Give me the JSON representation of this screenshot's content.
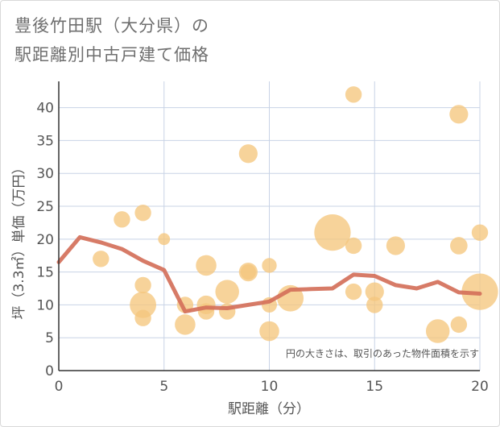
{
  "chart_data": {
    "type": "scatter",
    "title_line1": "豊後竹田駅（大分県）の",
    "title_line2": "駅距離別中古戸建て価格",
    "xlabel": "駅距離（分）",
    "ylabel": "坪（3.3㎡）単価（万円）",
    "annotation": "円の大きさは、取引のあった物件面積を示す",
    "xlim": [
      0,
      20
    ],
    "ylim": [
      0,
      44
    ],
    "xticks": [
      0,
      5,
      10,
      15,
      20
    ],
    "yticks": [
      0,
      5,
      10,
      15,
      20,
      25,
      30,
      35,
      40
    ],
    "grid": true,
    "colors": {
      "bubble": "#f5c77e",
      "line": "#d4705a",
      "grid": "#c8d3e6",
      "text": "#555555"
    },
    "bubbles": [
      {
        "x": 2,
        "y": 17,
        "size": 1
      },
      {
        "x": 3,
        "y": 23,
        "size": 1
      },
      {
        "x": 4,
        "y": 24,
        "size": 1
      },
      {
        "x": 4,
        "y": 13,
        "size": 1
      },
      {
        "x": 4,
        "y": 10,
        "size": 4
      },
      {
        "x": 4,
        "y": 8,
        "size": 1
      },
      {
        "x": 5,
        "y": 20,
        "size": 0.3
      },
      {
        "x": 6,
        "y": 10,
        "size": 1
      },
      {
        "x": 6,
        "y": 7,
        "size": 2
      },
      {
        "x": 7,
        "y": 16,
        "size": 2
      },
      {
        "x": 7,
        "y": 10,
        "size": 1.5
      },
      {
        "x": 7,
        "y": 9,
        "size": 1
      },
      {
        "x": 8,
        "y": 12,
        "size": 3
      },
      {
        "x": 8,
        "y": 9,
        "size": 1
      },
      {
        "x": 9,
        "y": 33,
        "size": 1.5
      },
      {
        "x": 9,
        "y": 15,
        "size": 1.5
      },
      {
        "x": 9,
        "y": 15,
        "size": 0.8
      },
      {
        "x": 10,
        "y": 16,
        "size": 0.7
      },
      {
        "x": 10,
        "y": 10,
        "size": 0.8
      },
      {
        "x": 10,
        "y": 6,
        "size": 1.8
      },
      {
        "x": 11,
        "y": 11,
        "size": 4
      },
      {
        "x": 13,
        "y": 21,
        "size": 9
      },
      {
        "x": 14,
        "y": 42,
        "size": 1
      },
      {
        "x": 14,
        "y": 19,
        "size": 1
      },
      {
        "x": 14,
        "y": 12,
        "size": 1
      },
      {
        "x": 15,
        "y": 12,
        "size": 1.5
      },
      {
        "x": 15,
        "y": 10,
        "size": 1
      },
      {
        "x": 16,
        "y": 19,
        "size": 1.5
      },
      {
        "x": 18,
        "y": 6,
        "size": 3
      },
      {
        "x": 19,
        "y": 39,
        "size": 1.5
      },
      {
        "x": 19,
        "y": 19,
        "size": 1.2
      },
      {
        "x": 19,
        "y": 7,
        "size": 1
      },
      {
        "x": 20,
        "y": 21,
        "size": 1
      },
      {
        "x": 20,
        "y": 12,
        "size": 9
      }
    ],
    "series": [
      {
        "x": [
          0,
          1,
          2,
          3,
          4,
          5,
          6,
          7,
          8,
          9,
          10,
          11,
          12,
          13,
          14,
          15,
          16,
          17,
          18,
          19,
          20
        ],
        "values": [
          16.5,
          20.3,
          19.5,
          18.5,
          16.7,
          15.3,
          9.0,
          9.6,
          9.5,
          10.0,
          10.5,
          12.3,
          12.4,
          12.5,
          14.6,
          14.4,
          13.0,
          12.5,
          13.5,
          11.9,
          11.7
        ]
      }
    ]
  }
}
